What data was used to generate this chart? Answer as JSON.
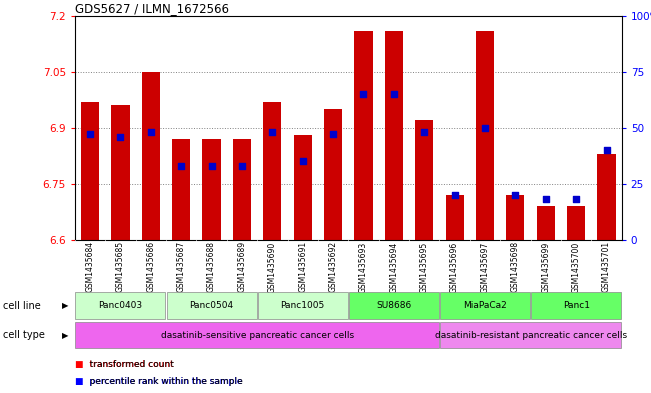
{
  "title": "GDS5627 / ILMN_1672566",
  "samples": [
    "GSM1435684",
    "GSM1435685",
    "GSM1435686",
    "GSM1435687",
    "GSM1435688",
    "GSM1435689",
    "GSM1435690",
    "GSM1435691",
    "GSM1435692",
    "GSM1435693",
    "GSM1435694",
    "GSM1435695",
    "GSM1435696",
    "GSM1435697",
    "GSM1435698",
    "GSM1435699",
    "GSM1435700",
    "GSM1435701"
  ],
  "bar_values": [
    6.97,
    6.96,
    7.05,
    6.87,
    6.87,
    6.87,
    6.97,
    6.88,
    6.95,
    7.16,
    7.16,
    6.92,
    6.72,
    7.16,
    6.72,
    6.69,
    6.69,
    6.83
  ],
  "percentile_values": [
    47,
    46,
    48,
    33,
    33,
    33,
    48,
    35,
    47,
    65,
    65,
    48,
    20,
    50,
    20,
    18,
    18,
    40
  ],
  "ylim_left": [
    6.6,
    7.2
  ],
  "ylim_right": [
    0,
    100
  ],
  "yticks_left": [
    6.6,
    6.75,
    6.9,
    7.05,
    7.2
  ],
  "yticks_right": [
    0,
    25,
    50,
    75,
    100
  ],
  "yticklabels_right": [
    "0",
    "25",
    "50",
    "75",
    "100%"
  ],
  "bar_color": "#cc0000",
  "dot_color": "#0000cc",
  "bar_bottom": 6.6,
  "cell_lines": [
    {
      "label": "Panc0403",
      "start": 0,
      "end": 2,
      "color": "#ccffcc"
    },
    {
      "label": "Panc0504",
      "start": 3,
      "end": 5,
      "color": "#ccffcc"
    },
    {
      "label": "Panc1005",
      "start": 6,
      "end": 8,
      "color": "#ccffcc"
    },
    {
      "label": "SU8686",
      "start": 9,
      "end": 11,
      "color": "#66ff66"
    },
    {
      "label": "MiaPaCa2",
      "start": 12,
      "end": 14,
      "color": "#66ff66"
    },
    {
      "label": "Panc1",
      "start": 15,
      "end": 17,
      "color": "#66ff66"
    }
  ],
  "cell_types": [
    {
      "label": "dasatinib-sensitive pancreatic cancer cells",
      "start": 0,
      "end": 11,
      "color": "#ee66ee"
    },
    {
      "label": "dasatinib-resistant pancreatic cancer cells",
      "start": 12,
      "end": 17,
      "color": "#ee88ee"
    }
  ],
  "bg_color": "#d8d8d8",
  "plot_bg": "#ffffff",
  "fig_bg": "#ffffff"
}
